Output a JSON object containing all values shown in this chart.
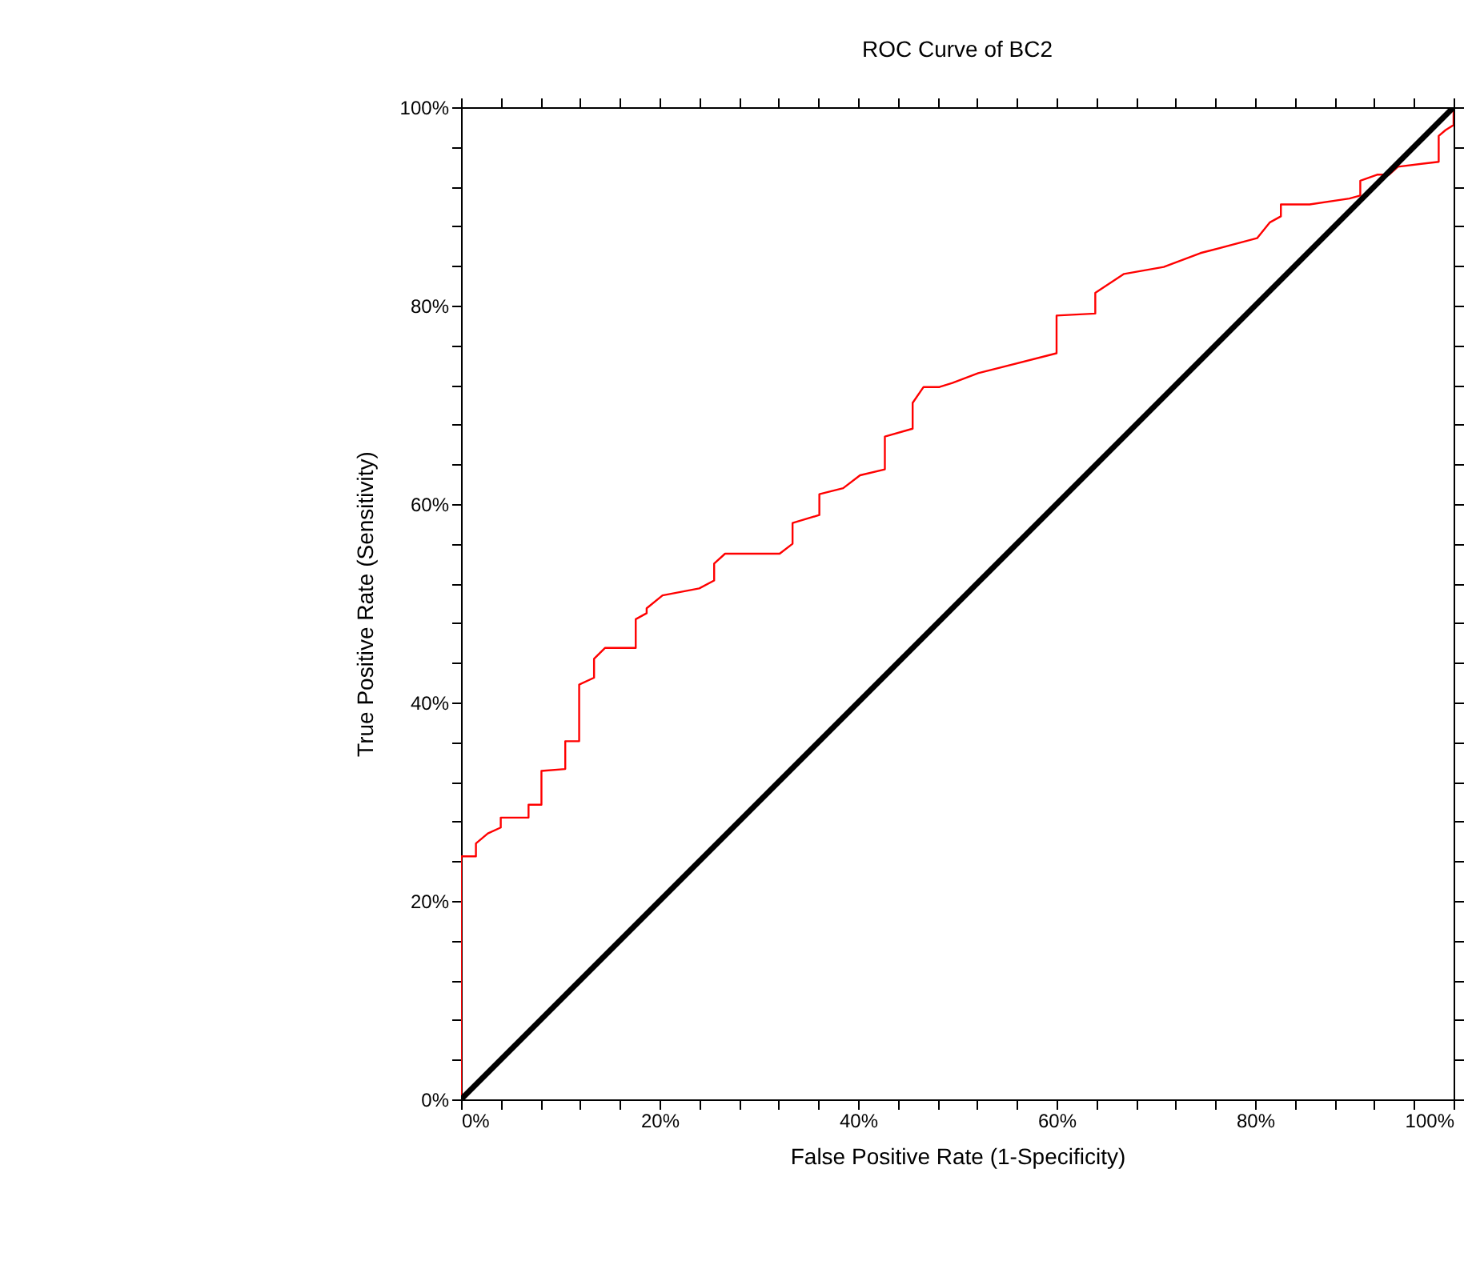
{
  "chart_data": {
    "type": "line",
    "title": "ROC Curve of BC2",
    "xlabel": "False Positive Rate (1-Specificity)",
    "ylabel": "True Positive Rate (Sensitivity)",
    "xlim": [
      0,
      100
    ],
    "ylim": [
      0,
      100
    ],
    "xticks": [
      {
        "value": 0,
        "label": "0%"
      },
      {
        "value": 4,
        "label": null
      },
      {
        "value": 8,
        "label": null
      },
      {
        "value": 12,
        "label": null
      },
      {
        "value": 16,
        "label": null
      },
      {
        "value": 20,
        "label": "20%"
      },
      {
        "value": 24,
        "label": null
      },
      {
        "value": 28,
        "label": null
      },
      {
        "value": 32,
        "label": null
      },
      {
        "value": 36,
        "label": null
      },
      {
        "value": 40,
        "label": "40%"
      },
      {
        "value": 44,
        "label": null
      },
      {
        "value": 48,
        "label": null
      },
      {
        "value": 52,
        "label": null
      },
      {
        "value": 56,
        "label": null
      },
      {
        "value": 60,
        "label": "60%"
      },
      {
        "value": 64,
        "label": null
      },
      {
        "value": 68,
        "label": null
      },
      {
        "value": 72,
        "label": null
      },
      {
        "value": 76,
        "label": null
      },
      {
        "value": 80,
        "label": "80%"
      },
      {
        "value": 84,
        "label": null
      },
      {
        "value": 88,
        "label": null
      },
      {
        "value": 92,
        "label": null
      },
      {
        "value": 96,
        "label": null
      },
      {
        "value": 100,
        "label": "100%"
      }
    ],
    "yticks": [
      {
        "value": 0,
        "label": "0%"
      },
      {
        "value": 4,
        "label": null
      },
      {
        "value": 8,
        "label": null
      },
      {
        "value": 12,
        "label": null
      },
      {
        "value": 16,
        "label": null
      },
      {
        "value": 20,
        "label": "20%"
      },
      {
        "value": 24,
        "label": null
      },
      {
        "value": 28,
        "label": null
      },
      {
        "value": 32,
        "label": null
      },
      {
        "value": 36,
        "label": null
      },
      {
        "value": 40,
        "label": "40%"
      },
      {
        "value": 44,
        "label": null
      },
      {
        "value": 48,
        "label": null
      },
      {
        "value": 52,
        "label": null
      },
      {
        "value": 56,
        "label": null
      },
      {
        "value": 60,
        "label": "60%"
      },
      {
        "value": 64,
        "label": null
      },
      {
        "value": 68,
        "label": null
      },
      {
        "value": 72,
        "label": null
      },
      {
        "value": 76,
        "label": null
      },
      {
        "value": 80,
        "label": "80%"
      },
      {
        "value": 84,
        "label": null
      },
      {
        "value": 88,
        "label": null
      },
      {
        "value": 92,
        "label": null
      },
      {
        "value": 96,
        "label": null
      },
      {
        "value": 100,
        "label": "100%"
      }
    ],
    "grid": false,
    "marker": "none",
    "line_style": "solid",
    "series": [
      {
        "color": "#ff0000",
        "x": [
          0,
          0,
          1.5,
          1.5,
          2.7,
          4.0,
          4.0,
          6.8,
          6.8,
          8.1,
          8.1,
          10.5,
          10.5,
          11.9,
          11.9,
          13.4,
          13.4,
          14.5,
          17.6,
          17.6,
          18.7,
          18.7,
          20.3,
          24.0,
          25.5,
          25.5,
          26.6,
          32.1,
          33.4,
          33.4,
          36.1,
          36.1,
          38.5,
          40.2,
          42.7,
          42.7,
          45.5,
          45.5,
          46.6,
          48.2,
          49.5,
          52.1,
          60.0,
          60.0,
          63.9,
          63.9,
          66.8,
          70.8,
          74.5,
          80.2,
          81.5,
          82.6,
          82.6,
          85.5,
          89.5,
          90.6,
          90.6,
          92.3,
          93.5,
          94.4,
          98.5,
          98.5,
          99.2,
          100,
          100
        ],
        "values": [
          0,
          24.5,
          24.5,
          25.8,
          26.8,
          27.4,
          28.4,
          28.4,
          29.7,
          29.7,
          33.1,
          33.3,
          36.1,
          36.1,
          41.8,
          42.5,
          44.4,
          45.5,
          45.5,
          48.4,
          49.0,
          49.5,
          50.8,
          51.5,
          52.3,
          54.0,
          55.0,
          55.0,
          56.0,
          58.1,
          58.9,
          61.0,
          61.6,
          62.9,
          63.5,
          66.8,
          67.6,
          70.2,
          71.8,
          71.8,
          72.2,
          73.2,
          75.2,
          79.0,
          79.2,
          81.3,
          83.2,
          83.9,
          85.3,
          86.8,
          88.4,
          89.0,
          90.2,
          90.2,
          90.8,
          91.1,
          92.6,
          93.2,
          93.2,
          94.0,
          94.5,
          97.1,
          97.7,
          98.2,
          100
        ]
      },
      {
        "color": "#000000",
        "x": [
          0,
          100
        ],
        "values": [
          0,
          100
        ]
      }
    ]
  }
}
